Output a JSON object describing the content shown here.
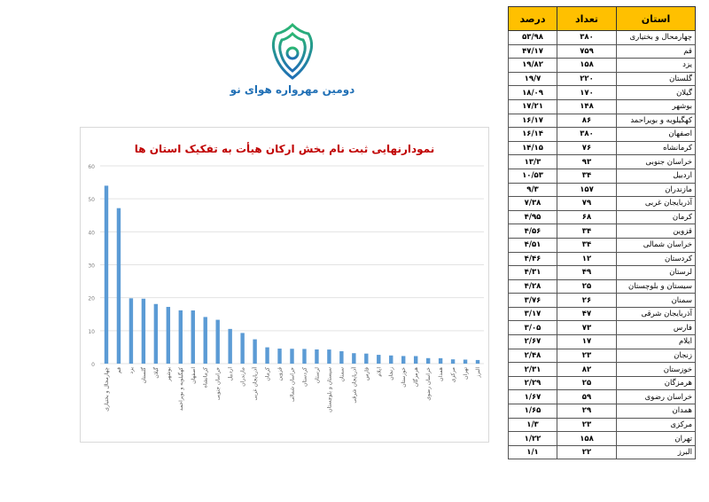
{
  "logo": {
    "text": "دومین مهرواره هوای نو",
    "colors": [
      "#2bb673",
      "#1f6fb5"
    ]
  },
  "table": {
    "headers": {
      "province": "استان",
      "count": "تعداد",
      "percent": "درصد"
    },
    "header_color": "#ffc000",
    "rows": [
      {
        "province": "چهارمحال و بختیاری",
        "count": "۳۸۰",
        "percent": "۵۳/۹۸"
      },
      {
        "province": "قم",
        "count": "۷۵۹",
        "percent": "۴۷/۱۷"
      },
      {
        "province": "یزد",
        "count": "۱۵۸",
        "percent": "۱۹/۸۲"
      },
      {
        "province": "گلستان",
        "count": "۲۲۰",
        "percent": "۱۹/۷"
      },
      {
        "province": "گیلان",
        "count": "۱۷۰",
        "percent": "۱۸/۰۹"
      },
      {
        "province": "بوشهر",
        "count": "۱۴۸",
        "percent": "۱۷/۲۱"
      },
      {
        "province": "کهگیلویه و بویراحمد",
        "count": "۸۶",
        "percent": "۱۶/۱۷"
      },
      {
        "province": "اصفهان",
        "count": "۳۸۰",
        "percent": "۱۶/۱۴"
      },
      {
        "province": "کرمانشاه",
        "count": "۷۶",
        "percent": "۱۴/۱۵"
      },
      {
        "province": "خراسان جنوبی",
        "count": "۹۳",
        "percent": "۱۳/۳"
      },
      {
        "province": "اردبیل",
        "count": "۳۴",
        "percent": "۱۰/۵۳"
      },
      {
        "province": "مازندران",
        "count": "۱۵۷",
        "percent": "۹/۳"
      },
      {
        "province": "آذربایجان غربی",
        "count": "۷۹",
        "percent": "۷/۳۸"
      },
      {
        "province": "کرمان",
        "count": "۶۸",
        "percent": "۴/۹۵"
      },
      {
        "province": "قزوین",
        "count": "۳۴",
        "percent": "۴/۵۶"
      },
      {
        "province": "خراسان شمالی",
        "count": "۳۴",
        "percent": "۴/۵۱"
      },
      {
        "province": "کردستان",
        "count": "۱۲",
        "percent": "۴/۴۶"
      },
      {
        "province": "لرستان",
        "count": "۴۹",
        "percent": "۴/۳۱"
      },
      {
        "province": "سیستان و بلوچستان",
        "count": "۲۵",
        "percent": "۴/۲۸"
      },
      {
        "province": "سمنان",
        "count": "۲۶",
        "percent": "۳/۷۶"
      },
      {
        "province": "آذربایجان شرقی",
        "count": "۴۷",
        "percent": "۳/۱۷"
      },
      {
        "province": "فارس",
        "count": "۷۳",
        "percent": "۳/۰۵"
      },
      {
        "province": "ایلام",
        "count": "۱۷",
        "percent": "۲/۶۷"
      },
      {
        "province": "زنجان",
        "count": "۲۳",
        "percent": "۲/۴۸"
      },
      {
        "province": "خوزستان",
        "count": "۸۲",
        "percent": "۲/۳۱"
      },
      {
        "province": "هرمزگان",
        "count": "۲۵",
        "percent": "۲/۲۹"
      },
      {
        "province": "خراسان رضوی",
        "count": "۵۹",
        "percent": "۱/۶۷"
      },
      {
        "province": "همدان",
        "count": "۲۹",
        "percent": "۱/۶۵"
      },
      {
        "province": "مرکزی",
        "count": "۲۳",
        "percent": "۱/۳"
      },
      {
        "province": "تهران",
        "count": "۱۵۸",
        "percent": "۱/۲۲"
      },
      {
        "province": "البرز",
        "count": "۲۲",
        "percent": "۱/۱"
      }
    ]
  },
  "chart_data": {
    "type": "bar",
    "title": "نمودارنهایی  ثبت نام  بخش ارکان هیأت به تفکیک استان ها",
    "categories": [
      "چهارمحال و بختیاری",
      "قم",
      "یزد",
      "گلستان",
      "گیلان",
      "بوشهر",
      "کهگیلویه و بویراحمد",
      "اصفهان",
      "کرمانشاه",
      "خراسان جنوبی",
      "اردبیل",
      "مازندران",
      "آذربایجان غربی",
      "کرمان",
      "قزوین",
      "خراسان شمالی",
      "کردستان",
      "لرستان",
      "سیستان و بلوچستان",
      "سمنان",
      "آذربایجان شرقی",
      "فارس",
      "ایلام",
      "زنجان",
      "خوزستان",
      "هرمزگان",
      "خراسان رضوی",
      "همدان",
      "مرکزی",
      "تهران",
      "البرز"
    ],
    "values": [
      53.98,
      47.17,
      19.82,
      19.7,
      18.09,
      17.21,
      16.17,
      16.14,
      14.15,
      13.3,
      10.53,
      9.3,
      7.38,
      4.95,
      4.56,
      4.51,
      4.46,
      4.31,
      4.28,
      3.76,
      3.17,
      3.05,
      2.67,
      2.48,
      2.31,
      2.29,
      1.67,
      1.65,
      1.3,
      1.22,
      1.1
    ],
    "ylim": [
      0,
      60
    ],
    "yticks": [
      "0",
      "10",
      "20",
      "30",
      "40",
      "50",
      "60"
    ],
    "grid": true,
    "bar_color": "#5b9bd5",
    "title_color": "#c00000"
  }
}
